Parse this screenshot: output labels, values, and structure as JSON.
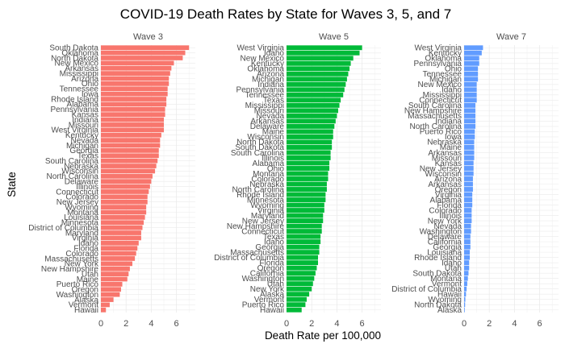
{
  "chart_data": {
    "type": "bar",
    "orientation": "horizontal",
    "faceted": true,
    "title": "COVID-19 Death Rates by State for Waves 3, 5, and 7",
    "xlabel": "Death Rate per 100,000",
    "ylabel": "State",
    "xlim": [
      0,
      7.5
    ],
    "xticks": [
      "0",
      "2",
      "4",
      "6"
    ],
    "grid": true,
    "panels": [
      {
        "name": "Wave 3",
        "color": "#F8766D",
        "categories": [
          "South Dakota",
          "Oklahoma",
          "North Dakota",
          "New Mexico",
          "Arkansas",
          "Mississippi",
          "Arizona",
          "Ohio",
          "Tennessee",
          "Iowa",
          "Rhode Island",
          "Alabama",
          "Pennsylvania",
          "Kansas",
          "Indiana",
          "Missouri",
          "West Virginia",
          "Kentucky",
          "Nevada",
          "Michigan",
          "Georgia",
          "Texas",
          "South Carolina",
          "Nebraska",
          "Wisconsin",
          "North Carolina",
          "Delaware",
          "Illinois",
          "Connecticut",
          "Colorado",
          "New Jersey",
          "Wyoming",
          "Montana",
          "Louisiana",
          "Minnesota",
          "District of Columbia",
          "Maryland",
          "Virginia",
          "Idaho",
          "Florida",
          "Colorado",
          "Massachusetts",
          "New York",
          "New Hampshire",
          "Utah",
          "Maine",
          "Puerto Rico",
          "Oregon",
          "Washington",
          "Alaska",
          "Vermont",
          "Hawaii"
        ],
        "values": [
          7.0,
          6.7,
          6.5,
          5.8,
          5.6,
          5.5,
          5.4,
          5.4,
          5.3,
          5.3,
          5.2,
          5.2,
          5.1,
          5.1,
          5.0,
          5.0,
          5.0,
          4.8,
          4.7,
          4.7,
          4.6,
          4.6,
          4.5,
          4.4,
          4.3,
          4.1,
          4.0,
          3.9,
          3.8,
          3.7,
          3.7,
          3.6,
          3.6,
          3.5,
          3.4,
          3.3,
          3.2,
          3.2,
          3.0,
          2.9,
          2.8,
          2.7,
          2.5,
          2.3,
          2.2,
          2.1,
          1.7,
          1.6,
          1.5,
          1.0,
          0.7,
          0.4
        ]
      },
      {
        "name": "Wave 5",
        "color": "#00BA38",
        "categories": [
          "West Virginia",
          "Idaho",
          "New Mexico",
          "Kentucky",
          "Oklahoma",
          "Arizona",
          "Michigan",
          "Indiana",
          "Pennsylvania",
          "Tennessee",
          "Texas",
          "Mississippi",
          "Missouri",
          "Nevada",
          "Arkansas",
          "Delaware",
          "Maine",
          "Wisconsin",
          "North Dakota",
          "South Dakota",
          "South Carolina",
          "Illinois",
          "Alabama",
          "Ohio",
          "Montana",
          "Colorado",
          "Nebraska",
          "North Carolina",
          "Rhode Island",
          "Minnesota",
          "Wyoming",
          "Virginia",
          "Maryland",
          "New Jersey",
          "New Hampshire",
          "Connecticut",
          "Texas",
          "Idaho",
          "Georgia",
          "Massachusetts",
          "District of Columbia",
          "Florida",
          "Oregon",
          "California",
          "Washington",
          "Utah",
          "New York",
          "Alaska",
          "Vermont",
          "Puerto Rico",
          "Hawaii"
        ],
        "values": [
          6.0,
          5.8,
          5.3,
          5.1,
          5.0,
          4.9,
          4.8,
          4.7,
          4.6,
          4.5,
          4.3,
          4.2,
          4.1,
          4.0,
          3.9,
          3.8,
          3.7,
          3.7,
          3.6,
          3.6,
          3.5,
          3.5,
          3.4,
          3.4,
          3.3,
          3.3,
          3.2,
          3.2,
          3.1,
          3.1,
          3.0,
          3.0,
          2.9,
          2.9,
          2.8,
          2.8,
          2.7,
          2.7,
          2.6,
          2.6,
          2.5,
          2.5,
          2.4,
          2.3,
          2.2,
          2.1,
          2.0,
          1.8,
          1.6,
          1.5,
          1.2
        ]
      },
      {
        "name": "Wave 7",
        "color": "#619CFF",
        "categories": [
          "West Virginia",
          "Kentucky",
          "Oklahoma",
          "Pennsylvania",
          "Ohio",
          "Tennessee",
          "Michigan",
          "New Mexico",
          "Idaho",
          "Mississippi",
          "Connecticut",
          "South Carolina",
          "New Hampshire",
          "Massachusetts",
          "Indiana",
          "North Carolina",
          "Puerto Rico",
          "Iowa",
          "Nebraska",
          "Maine",
          "Arkansas",
          "Missouri",
          "Kansas",
          "New Jersey",
          "Wisconsin",
          "Arizona",
          "Arkansas",
          "Oregon",
          "Virginia",
          "Alabama",
          "Florida",
          "Colorado",
          "Illinois",
          "New York",
          "Nevada",
          "Washington",
          "Delaware",
          "California",
          "Georgia",
          "Louisiana",
          "Rhode Island",
          "Idaho",
          "Utah",
          "South Dakota",
          "Montana",
          "Vermont",
          "District of Columbia",
          "Hawaii",
          "Wyoming",
          "North Dakota",
          "Alaska"
        ],
        "values": [
          1.5,
          1.4,
          1.2,
          1.2,
          1.1,
          1.1,
          1.1,
          1.0,
          1.0,
          1.0,
          1.0,
          0.9,
          0.9,
          0.9,
          0.9,
          0.9,
          0.85,
          0.85,
          0.8,
          0.8,
          0.8,
          0.8,
          0.75,
          0.75,
          0.75,
          0.7,
          0.7,
          0.7,
          0.65,
          0.65,
          0.65,
          0.6,
          0.6,
          0.6,
          0.55,
          0.55,
          0.5,
          0.5,
          0.5,
          0.45,
          0.45,
          0.4,
          0.4,
          0.35,
          0.3,
          0.25,
          0.2,
          0.15,
          0.1,
          0.08,
          0.05
        ]
      }
    ]
  }
}
